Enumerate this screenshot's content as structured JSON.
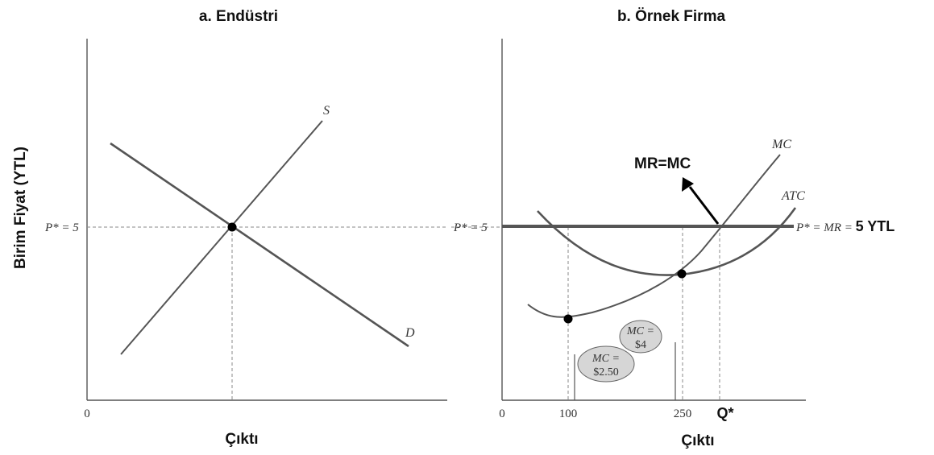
{
  "y_axis_label": "Birim Fiyat (YTL)",
  "panel_a": {
    "title": "a. Endüstri",
    "price_label": "P* = 5",
    "origin_label": "0",
    "x_axis_label": "Çıktı",
    "supply_label": "S",
    "demand_label": "D"
  },
  "panel_b": {
    "title": "b. Örnek Firma",
    "price_label": "P* = 5",
    "origin_label": "0",
    "x_tick_100": "100",
    "x_tick_250": "250",
    "q_star_label": "Q*",
    "x_axis_label": "Çıktı",
    "mc_label": "MC",
    "atc_label": "ATC",
    "mr_line_label_prefix": "P* = MR = ",
    "mr_line_label_value": "5 YTL",
    "annotation": "MR=MC",
    "bubble_mc4_line1": "MC =",
    "bubble_mc4_line2": "$4",
    "bubble_mc250_line1": "MC =",
    "bubble_mc250_line2": "$2.50"
  },
  "colors": {
    "curve": "#555555",
    "axis": "#555555",
    "dashed": "#8a8a8a",
    "bubble_fill": "#d6d6d6",
    "dot": "#000000"
  }
}
